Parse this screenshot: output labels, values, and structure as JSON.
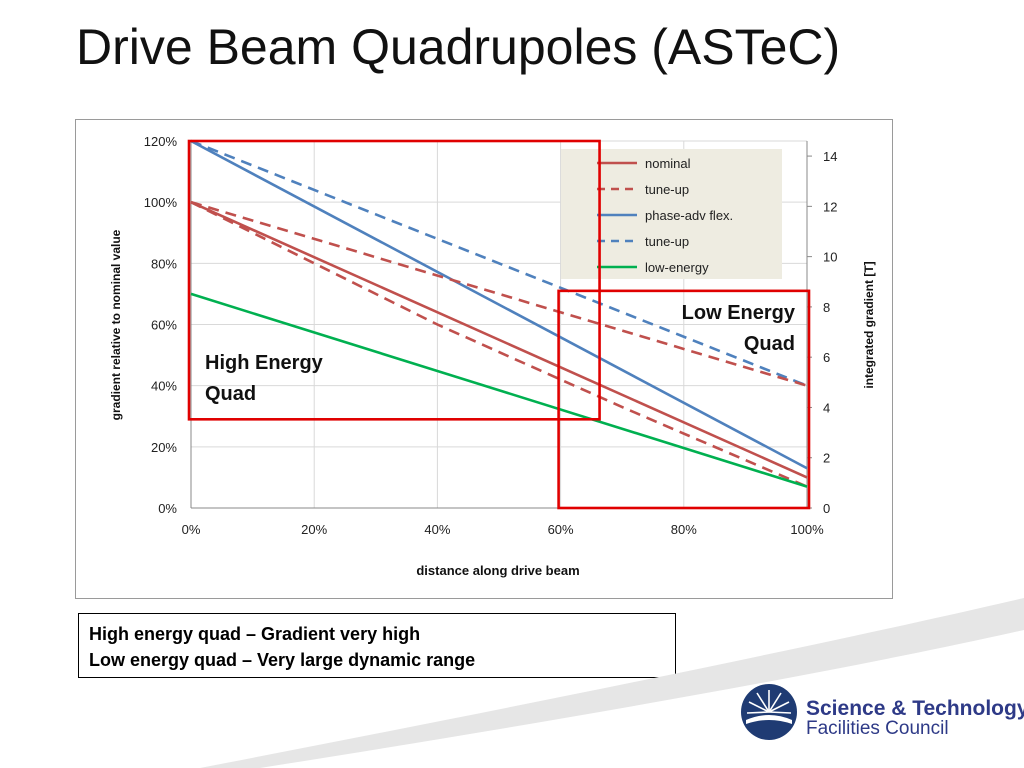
{
  "slide": {
    "title": "Drive Beam Quadrupoles (ASTeC)",
    "notes": [
      "High energy quad – Gradient very high",
      "Low energy quad – Very large dynamic range"
    ],
    "logo": {
      "line1": "Science & Technology",
      "line2": "Facilities Council"
    }
  },
  "chart_data": {
    "type": "line",
    "xlabel": "distance along drive beam",
    "ylabel": "gradient relative to nominal value",
    "y2label": "integrated gradient [T]",
    "xlim": [
      0,
      100
    ],
    "ylim": [
      0,
      120
    ],
    "y2lim": [
      0,
      14.6
    ],
    "x_ticks": [
      "0%",
      "20%",
      "40%",
      "60%",
      "80%",
      "100%"
    ],
    "y_ticks": [
      "0%",
      "20%",
      "40%",
      "60%",
      "80%",
      "100%",
      "120%"
    ],
    "y2_ticks": [
      "0",
      "2",
      "4",
      "6",
      "8",
      "10",
      "12",
      "14"
    ],
    "grid": true,
    "legend_placement": "top-right",
    "series": [
      {
        "name": "nominal",
        "color": "#c0504d",
        "dash": "solid",
        "x": [
          0,
          100
        ],
        "y": [
          100,
          10
        ]
      },
      {
        "name": "tune-up",
        "color": "#c0504d",
        "dash": "dashed",
        "x": [
          0,
          40,
          70,
          100
        ],
        "y": [
          100,
          60,
          33,
          7
        ]
      },
      {
        "name": "phase-adv flex.",
        "color": "#4f81bd",
        "dash": "solid",
        "x": [
          0,
          100
        ],
        "y": [
          120,
          13
        ]
      },
      {
        "name": "tune-up",
        "color": "#4f81bd",
        "dash": "dashed",
        "x": [
          0,
          100
        ],
        "y": [
          120,
          40
        ]
      },
      {
        "name": "low-energy",
        "color": "#00b050",
        "dash": "solid",
        "x": [
          0,
          100
        ],
        "y": [
          70,
          7
        ]
      },
      {
        "name": "",
        "color": "#c0504d",
        "dash": "dashed",
        "x": [
          0,
          100
        ],
        "y": [
          100,
          40
        ]
      }
    ],
    "annotations": [
      {
        "text_lines": [
          "High Energy",
          "Quad"
        ],
        "box_x": [
          0,
          66
        ],
        "box_y": [
          29,
          120
        ]
      },
      {
        "text_lines": [
          "Low Energy",
          "Quad"
        ],
        "box_x": [
          60,
          100
        ],
        "box_y": [
          0,
          71
        ]
      }
    ]
  }
}
